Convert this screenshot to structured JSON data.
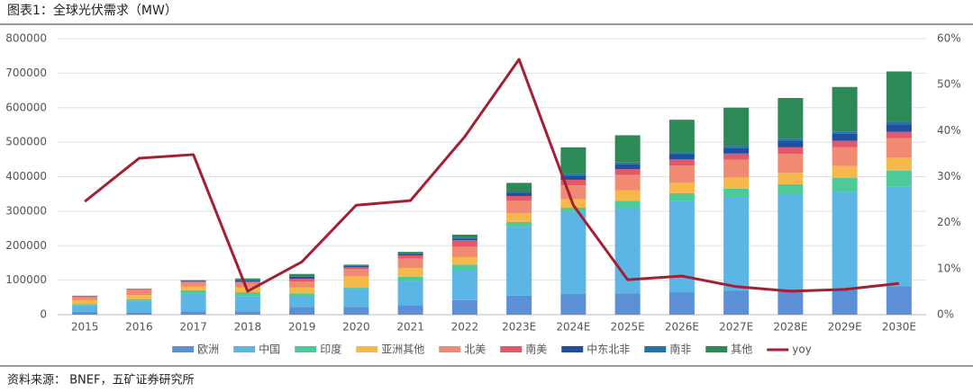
{
  "chart_data": {
    "type": "bar",
    "stacked": true,
    "title": "图表1：全球光伏需求（MW）",
    "source": "资料来源： BNEF，五矿证券研究所",
    "categories": [
      "2015",
      "2016",
      "2017",
      "2018",
      "2019",
      "2020",
      "2021",
      "2022",
      "2023E",
      "2024E",
      "2025E",
      "2026E",
      "2027E",
      "2028E",
      "2029E",
      "2030E"
    ],
    "ylim": [
      0,
      800000
    ],
    "yticks": [
      0,
      100000,
      200000,
      300000,
      400000,
      500000,
      600000,
      700000,
      800000
    ],
    "y2lim": [
      0,
      60
    ],
    "y2ticks": [
      {
        "value": 0,
        "label": "0%"
      },
      {
        "value": 10,
        "label": "10%"
      },
      {
        "value": 20,
        "label": "20%"
      },
      {
        "value": 30,
        "label": "30%"
      },
      {
        "value": 40,
        "label": "40%"
      },
      {
        "value": 50,
        "label": "50%"
      },
      {
        "value": 60,
        "label": "60%"
      }
    ],
    "grid": true,
    "legend": "bottom",
    "series": [
      {
        "name": "欧洲",
        "color": "#5b8fd6",
        "values": [
          8000,
          7000,
          9000,
          10000,
          22000,
          22000,
          28000,
          42000,
          55000,
          60000,
          62000,
          65000,
          70000,
          73000,
          76000,
          82000
        ]
      },
      {
        "name": "中国",
        "color": "#5bb5e5",
        "values": [
          20000,
          33000,
          52000,
          44000,
          30000,
          52000,
          70000,
          87000,
          200000,
          240000,
          248000,
          265000,
          270000,
          275000,
          280000,
          290000
        ]
      },
      {
        "name": "印度",
        "color": "#4dc99a",
        "values": [
          2000,
          5000,
          10000,
          11000,
          10000,
          4000,
          12000,
          16000,
          14000,
          10000,
          20000,
          22000,
          25000,
          30000,
          40000,
          45000
        ]
      },
      {
        "name": "亚洲其他",
        "color": "#f7b84b",
        "values": [
          12000,
          12000,
          11000,
          14000,
          17000,
          34000,
          25000,
          22000,
          25000,
          25000,
          30000,
          30000,
          32000,
          33000,
          35000,
          38000
        ]
      },
      {
        "name": "北美",
        "color": "#f08a72",
        "values": [
          9000,
          15000,
          12000,
          13000,
          17000,
          20000,
          28000,
          30000,
          36000,
          40000,
          45000,
          50000,
          52000,
          55000,
          55000,
          57000
        ]
      },
      {
        "name": "南美",
        "color": "#e05a6b",
        "values": [
          1000,
          1000,
          3000,
          4000,
          8000,
          6000,
          9000,
          19000,
          14000,
          16000,
          17000,
          18000,
          18000,
          19000,
          18000,
          18000
        ]
      },
      {
        "name": "中东北非",
        "color": "#1f4fa0",
        "values": [
          1000,
          1000,
          2000,
          3000,
          6000,
          3000,
          4000,
          5000,
          10000,
          12000,
          14000,
          15000,
          16000,
          18000,
          20000,
          22000
        ]
      },
      {
        "name": "南非",
        "color": "#2272b0",
        "values": [
          1000,
          1000,
          0,
          1000,
          2000,
          1000,
          1000,
          2000,
          3000,
          4000,
          5000,
          5000,
          6000,
          7000,
          7000,
          8000
        ]
      },
      {
        "name": "其他",
        "color": "#2d8a56",
        "values": [
          1000,
          0,
          1000,
          5000,
          6000,
          3000,
          5000,
          9000,
          25000,
          78000,
          79000,
          95000,
          111000,
          118000,
          129000,
          145000
        ]
      },
      {
        "name": "yoy",
        "color": "#a31f34",
        "type": "line",
        "axis": "y2",
        "values": [
          24.6,
          34.0,
          34.8,
          5.1,
          11.5,
          23.8,
          24.8,
          38.7,
          55.5,
          23.8,
          7.6,
          8.4,
          6.1,
          5.1,
          5.5,
          6.8
        ]
      }
    ]
  }
}
